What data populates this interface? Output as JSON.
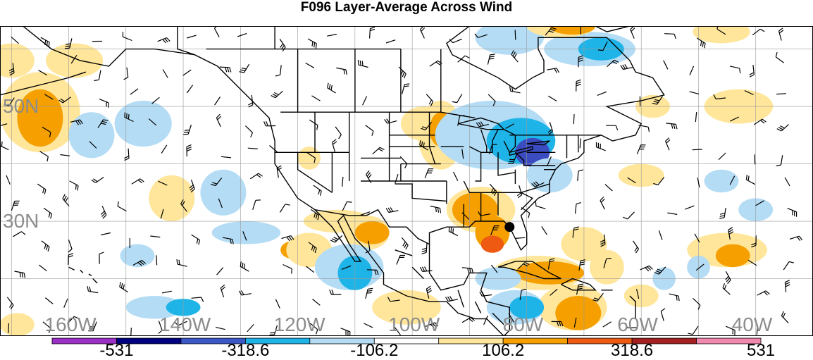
{
  "title": "F096 Layer-Average Across Wind",
  "lat_labels": [
    {
      "text": "50N",
      "lat": 50
    },
    {
      "text": "30N",
      "lat": 30
    }
  ],
  "lon_labels": [
    {
      "text": "160W",
      "lon": -160
    },
    {
      "text": "140W",
      "lon": -140
    },
    {
      "text": "120W",
      "lon": -120
    },
    {
      "text": "100W",
      "lon": -100
    },
    {
      "text": "80W",
      "lon": -80
    },
    {
      "text": "60W",
      "lon": -60
    },
    {
      "text": "40W",
      "lon": -40
    }
  ],
  "colorbar": {
    "labels": [
      "-531",
      "-318.6",
      "-106.2",
      "106.2",
      "318.6",
      "531"
    ],
    "label_positions": [
      1,
      3,
      5,
      7,
      9,
      11
    ],
    "colors": [
      "#9b30c9",
      "#000080",
      "#3b58c7",
      "#1fb4e8",
      "#b4dcf5",
      "#ffffff",
      "#ffe69a",
      "#f5a000",
      "#ee5a12",
      "#a52121",
      "#f088b0"
    ]
  },
  "colors": {
    "negative_strong": "#3b4cc0",
    "negative_mid": "#1fb4e8",
    "negative_weak": "#b4dcf5",
    "positive_weak": "#ffe69a",
    "positive_mid": "#f5a000",
    "positive_strong": "#ee5a12",
    "grid": "#9a9a9a",
    "coast": "#000000"
  },
  "map_extent": {
    "lon_min": -172,
    "lon_max": -30,
    "lat_min": 10,
    "lat_max": 64
  },
  "marker": {
    "lon": -83,
    "lat": 29
  },
  "shading_blobs": [
    {
      "lon": -165,
      "lat": 49,
      "rx": 7,
      "ry": 7,
      "level": "positive_weak"
    },
    {
      "lon": -165,
      "lat": 48,
      "rx": 4,
      "ry": 5,
      "level": "positive_mid"
    },
    {
      "lon": -170,
      "lat": 58,
      "rx": 4,
      "ry": 3,
      "level": "positive_weak"
    },
    {
      "lon": -159,
      "lat": 58,
      "rx": 5,
      "ry": 3,
      "level": "positive_weak"
    },
    {
      "lon": -156,
      "lat": 45,
      "rx": 4,
      "ry": 4,
      "level": "negative_weak"
    },
    {
      "lon": -147,
      "lat": 47,
      "rx": 5,
      "ry": 4,
      "level": "negative_weak"
    },
    {
      "lon": -142,
      "lat": 34,
      "rx": 4,
      "ry": 4,
      "level": "positive_weak"
    },
    {
      "lon": -133,
      "lat": 35,
      "rx": 4,
      "ry": 4,
      "level": "negative_weak"
    },
    {
      "lon": -129,
      "lat": 28,
      "rx": 6,
      "ry": 2,
      "level": "negative_weak"
    },
    {
      "lon": -118,
      "lat": 41,
      "rx": 2,
      "ry": 2,
      "level": "positive_weak"
    },
    {
      "lon": -113,
      "lat": 30,
      "rx": 6,
      "ry": 2,
      "level": "positive_weak"
    },
    {
      "lon": -108,
      "lat": 28,
      "rx": 4,
      "ry": 3,
      "level": "positive_weak"
    },
    {
      "lon": -107,
      "lat": 28,
      "rx": 3,
      "ry": 2,
      "level": "positive_mid"
    },
    {
      "lon": -121,
      "lat": 25,
      "rx": 2,
      "ry": 1.5,
      "level": "positive_mid"
    },
    {
      "lon": -118,
      "lat": 25,
      "rx": 4,
      "ry": 3,
      "level": "positive_weak"
    },
    {
      "lon": -111,
      "lat": 22,
      "rx": 6,
      "ry": 4,
      "level": "negative_weak"
    },
    {
      "lon": -110,
      "lat": 21,
      "rx": 3,
      "ry": 3,
      "level": "negative_mid"
    },
    {
      "lon": -148,
      "lat": 24,
      "rx": 3,
      "ry": 2,
      "level": "negative_weak"
    },
    {
      "lon": -145,
      "lat": 15,
      "rx": 5,
      "ry": 2,
      "level": "negative_weak"
    },
    {
      "lon": -140,
      "lat": 15,
      "rx": 3,
      "ry": 1.5,
      "level": "negative_mid"
    },
    {
      "lon": -169,
      "lat": 12,
      "rx": 3,
      "ry": 2,
      "level": "positive_weak"
    },
    {
      "lon": -101,
      "lat": 15,
      "rx": 6,
      "ry": 3,
      "level": "positive_weak"
    },
    {
      "lon": -98,
      "lat": 47,
      "rx": 4,
      "ry": 3,
      "level": "positive_weak"
    },
    {
      "lon": -95,
      "lat": 45,
      "rx": 4,
      "ry": 6,
      "level": "positive_weak"
    },
    {
      "lon": -95,
      "lat": 46,
      "rx": 2,
      "ry": 3,
      "level": "positive_mid"
    },
    {
      "lon": -86,
      "lat": 45,
      "rx": 10,
      "ry": 6,
      "level": "negative_weak"
    },
    {
      "lon": -81,
      "lat": 44,
      "rx": 6,
      "ry": 4,
      "level": "negative_mid"
    },
    {
      "lon": -79,
      "lat": 42,
      "rx": 3,
      "ry": 2.5,
      "level": "negative_strong"
    },
    {
      "lon": -83,
      "lat": 62,
      "rx": 6,
      "ry": 3,
      "level": "negative_weak"
    },
    {
      "lon": -69,
      "lat": 60,
      "rx": 8,
      "ry": 3,
      "level": "negative_weak"
    },
    {
      "lon": -67,
      "lat": 60,
      "rx": 4,
      "ry": 2,
      "level": "negative_mid"
    },
    {
      "lon": -74,
      "lat": 64,
      "rx": 6,
      "ry": 2,
      "level": "positive_weak"
    },
    {
      "lon": -72,
      "lat": 64,
      "rx": 4,
      "ry": 1.5,
      "level": "positive_mid"
    },
    {
      "lon": -46,
      "lat": 63,
      "rx": 5,
      "ry": 2,
      "level": "positive_weak"
    },
    {
      "lon": -88,
      "lat": 32,
      "rx": 6,
      "ry": 4,
      "level": "positive_weak"
    },
    {
      "lon": -89,
      "lat": 32,
      "rx": 4,
      "ry": 3,
      "level": "positive_mid"
    },
    {
      "lon": -86,
      "lat": 28,
      "rx": 3,
      "ry": 3,
      "level": "positive_mid"
    },
    {
      "lon": -86,
      "lat": 26,
      "rx": 2,
      "ry": 1.5,
      "level": "positive_strong"
    },
    {
      "lon": -70,
      "lat": 26,
      "rx": 4,
      "ry": 3,
      "level": "positive_weak"
    },
    {
      "lon": -78,
      "lat": 21,
      "rx": 8,
      "ry": 3,
      "level": "positive_weak"
    },
    {
      "lon": -76,
      "lat": 21,
      "rx": 6,
      "ry": 2,
      "level": "positive_mid"
    },
    {
      "lon": -72,
      "lat": 15,
      "rx": 6,
      "ry": 4,
      "level": "positive_weak"
    },
    {
      "lon": -71,
      "lat": 14,
      "rx": 4,
      "ry": 3,
      "level": "positive_mid"
    },
    {
      "lon": -66,
      "lat": 22,
      "rx": 3,
      "ry": 3,
      "level": "positive_weak"
    },
    {
      "lon": -85,
      "lat": 20,
      "rx": 4,
      "ry": 2,
      "level": "negative_weak"
    },
    {
      "lon": -82,
      "lat": 15,
      "rx": 5,
      "ry": 3,
      "level": "negative_weak"
    },
    {
      "lon": -80,
      "lat": 15,
      "rx": 3,
      "ry": 2,
      "level": "negative_mid"
    },
    {
      "lon": -76,
      "lat": 38,
      "rx": 4,
      "ry": 3,
      "level": "negative_weak"
    },
    {
      "lon": -60,
      "lat": 38,
      "rx": 4,
      "ry": 2,
      "level": "positive_weak"
    },
    {
      "lon": -43,
      "lat": 50,
      "rx": 6,
      "ry": 3,
      "level": "positive_weak"
    },
    {
      "lon": -46,
      "lat": 37,
      "rx": 3,
      "ry": 2,
      "level": "negative_weak"
    },
    {
      "lon": -40,
      "lat": 32,
      "rx": 3,
      "ry": 2,
      "level": "negative_weak"
    },
    {
      "lon": -45,
      "lat": 25,
      "rx": 7,
      "ry": 3,
      "level": "positive_weak"
    },
    {
      "lon": -44,
      "lat": 24,
      "rx": 3,
      "ry": 2,
      "level": "positive_mid"
    },
    {
      "lon": -50,
      "lat": 22,
      "rx": 2,
      "ry": 2,
      "level": "negative_weak"
    },
    {
      "lon": -58,
      "lat": 50,
      "rx": 3,
      "ry": 2,
      "level": "positive_weak"
    },
    {
      "lon": -56,
      "lat": 20,
      "rx": 2,
      "ry": 2,
      "level": "negative_weak"
    },
    {
      "lon": -60,
      "lat": 17,
      "rx": 3,
      "ry": 2,
      "level": "positive_weak"
    }
  ]
}
